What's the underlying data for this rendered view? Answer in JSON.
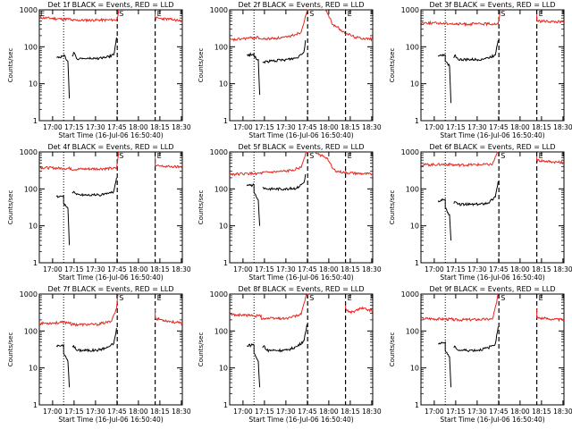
{
  "colors": {
    "events": "#000000",
    "lld": "#e8261e",
    "axis": "#000000"
  },
  "chart_data": {
    "type": "line",
    "yscale": "log",
    "ylim": [
      1,
      1000
    ],
    "xlim_minutes": [
      0,
      100
    ],
    "ylabel": "Counts/sec",
    "xlabel": "Start Time (16-Jul-06 16:50:40)",
    "yticks": [
      {
        "value": 1,
        "label": "1"
      },
      {
        "value": 10,
        "label": "10"
      },
      {
        "value": 100,
        "label": "100"
      },
      {
        "value": 1000,
        "label": "1000"
      }
    ],
    "xticks": [
      {
        "value": 9.3,
        "label": "17:00"
      },
      {
        "value": 24.3,
        "label": "17:15"
      },
      {
        "value": 39.3,
        "label": "17:30"
      },
      {
        "value": 54.3,
        "label": "17:45"
      },
      {
        "value": 69.3,
        "label": "18:00"
      },
      {
        "value": 84.3,
        "label": "18:15"
      },
      {
        "value": 99.3,
        "label": "18:30"
      }
    ],
    "markers": [
      {
        "label": "S",
        "x": 54.5,
        "style": "dashed"
      },
      {
        "label": "E",
        "x": 81.0,
        "style": "dashed"
      },
      {
        "label": "",
        "x": 17.0,
        "style": "dotted"
      }
    ],
    "panels": [
      {
        "title": "Det 1f BLACK = Events, RED = LLD",
        "corner_label": "E",
        "red": [
          [
            0,
            620
          ],
          [
            17,
            560
          ],
          [
            22,
            560
          ],
          [
            22,
            520
          ],
          [
            54,
            535
          ],
          [
            55,
            700
          ],
          [
            56,
            1200
          ]
        ],
        "red2": [
          [
            81,
            900
          ],
          [
            81,
            600
          ],
          [
            92,
            550
          ],
          [
            100,
            500
          ]
        ],
        "black": [
          [
            12,
            52
          ],
          [
            16,
            55
          ],
          [
            17,
            55
          ],
          [
            17,
            60
          ],
          [
            20,
            40
          ],
          [
            21,
            4
          ]
        ],
        "black2": [
          [
            23,
            55
          ],
          [
            24,
            70
          ],
          [
            26,
            48
          ],
          [
            40,
            48
          ],
          [
            47,
            52
          ],
          [
            52,
            60
          ],
          [
            53,
            100
          ],
          [
            54,
            180
          ]
        ]
      },
      {
        "title": "Det 2f BLACK = Events, RED = LLD",
        "corner_label": "",
        "red": [
          [
            0,
            150
          ],
          [
            12,
            170
          ],
          [
            20,
            180
          ],
          [
            22,
            160
          ],
          [
            40,
            180
          ],
          [
            50,
            250
          ],
          [
            53,
            700
          ],
          [
            55,
            1200
          ]
        ],
        "red2": [
          [
            66,
            1200
          ],
          [
            70,
            600
          ],
          [
            72,
            400
          ],
          [
            75,
            350
          ],
          [
            77,
            300
          ],
          [
            79,
            250
          ],
          [
            82,
            230
          ],
          [
            88,
            180
          ],
          [
            100,
            160
          ]
        ],
        "black": [
          [
            12,
            60
          ],
          [
            16,
            62
          ],
          [
            17,
            65
          ],
          [
            17,
            55
          ],
          [
            20,
            45
          ],
          [
            21,
            5
          ]
        ],
        "black2": [
          [
            23,
            38
          ],
          [
            26,
            40
          ],
          [
            38,
            44
          ],
          [
            47,
            50
          ],
          [
            52,
            75
          ],
          [
            53,
            150
          ]
        ]
      },
      {
        "title": "Det 3f BLACK = Events, RED = LLD",
        "corner_label": "",
        "red": [
          [
            0,
            450
          ],
          [
            17,
            430
          ],
          [
            22,
            430
          ],
          [
            22,
            410
          ],
          [
            54,
            420
          ],
          [
            55,
            700
          ],
          [
            56,
            1200
          ]
        ],
        "red2": [
          [
            81,
            750
          ],
          [
            81,
            500
          ],
          [
            92,
            480
          ],
          [
            100,
            460
          ]
        ],
        "black": [
          [
            12,
            55
          ],
          [
            16,
            58
          ],
          [
            17,
            60
          ],
          [
            17,
            40
          ],
          [
            20,
            30
          ],
          [
            21,
            3
          ]
        ],
        "black2": [
          [
            23,
            50
          ],
          [
            24,
            60
          ],
          [
            26,
            45
          ],
          [
            40,
            45
          ],
          [
            47,
            50
          ],
          [
            52,
            60
          ],
          [
            53,
            100
          ],
          [
            54,
            150
          ]
        ]
      },
      {
        "title": "Det 4f BLACK = Events, RED = LLD",
        "corner_label": "",
        "red": [
          [
            0,
            380
          ],
          [
            17,
            360
          ],
          [
            22,
            360
          ],
          [
            22,
            340
          ],
          [
            54,
            360
          ],
          [
            55,
            700
          ],
          [
            56,
            1200
          ]
        ],
        "red2": [
          [
            81,
            750
          ],
          [
            81,
            420
          ],
          [
            92,
            400
          ],
          [
            100,
            390
          ]
        ],
        "black": [
          [
            12,
            62
          ],
          [
            16,
            63
          ],
          [
            17,
            65
          ],
          [
            17,
            40
          ],
          [
            20,
            30
          ],
          [
            21,
            3
          ]
        ],
        "black2": [
          [
            23,
            80
          ],
          [
            24,
            85
          ],
          [
            26,
            70
          ],
          [
            40,
            68
          ],
          [
            47,
            72
          ],
          [
            52,
            85
          ],
          [
            53,
            130
          ],
          [
            54,
            200
          ]
        ]
      },
      {
        "title": "Det 5f BLACK = Events, RED = LLD",
        "corner_label": "",
        "red": [
          [
            0,
            250
          ],
          [
            17,
            260
          ],
          [
            22,
            260
          ],
          [
            22,
            270
          ],
          [
            40,
            300
          ],
          [
            50,
            380
          ],
          [
            53,
            900
          ],
          [
            55,
            1200
          ]
        ],
        "red2": [
          [
            60,
            900
          ],
          [
            64,
            800
          ],
          [
            68,
            700
          ],
          [
            70,
            500
          ],
          [
            72,
            350
          ],
          [
            75,
            300
          ],
          [
            80,
            280
          ],
          [
            90,
            260
          ],
          [
            100,
            250
          ]
        ],
        "black": [
          [
            12,
            120
          ],
          [
            16,
            125
          ],
          [
            17,
            130
          ],
          [
            17,
            80
          ],
          [
            20,
            50
          ],
          [
            21,
            10
          ]
        ],
        "black2": [
          [
            23,
            110
          ],
          [
            26,
            100
          ],
          [
            38,
            100
          ],
          [
            47,
            105
          ],
          [
            52,
            150
          ],
          [
            53,
            250
          ]
        ]
      },
      {
        "title": "Det 6f BLACK = Events, RED = LLD",
        "corner_label": "",
        "red": [
          [
            0,
            450
          ],
          [
            17,
            460
          ],
          [
            22,
            460
          ],
          [
            22,
            440
          ],
          [
            50,
            460
          ],
          [
            53,
            900
          ],
          [
            54,
            1200
          ]
        ],
        "red2": [
          [
            81,
            750
          ],
          [
            81,
            600
          ],
          [
            92,
            540
          ],
          [
            100,
            520
          ]
        ],
        "black": [
          [
            12,
            48
          ],
          [
            16,
            50
          ],
          [
            17,
            52
          ],
          [
            17,
            30
          ],
          [
            20,
            20
          ],
          [
            21,
            4
          ]
        ],
        "black2": [
          [
            23,
            40
          ],
          [
            24,
            45
          ],
          [
            26,
            38
          ],
          [
            40,
            38
          ],
          [
            47,
            42
          ],
          [
            52,
            60
          ],
          [
            53,
            100
          ],
          [
            54,
            160
          ]
        ]
      },
      {
        "title": "Det 7f BLACK = Events, RED = LLD",
        "corner_label": "",
        "red": [
          [
            0,
            160
          ],
          [
            17,
            170
          ],
          [
            22,
            170
          ],
          [
            22,
            150
          ],
          [
            40,
            150
          ],
          [
            50,
            180
          ],
          [
            54,
            400
          ],
          [
            55,
            1200
          ]
        ],
        "red2": [
          [
            81,
            400
          ],
          [
            81,
            220
          ],
          [
            92,
            180
          ],
          [
            100,
            160
          ]
        ],
        "black": [
          [
            12,
            40
          ],
          [
            16,
            42
          ],
          [
            17,
            42
          ],
          [
            17,
            25
          ],
          [
            20,
            15
          ],
          [
            21,
            3
          ]
        ],
        "black2": [
          [
            23,
            38
          ],
          [
            24,
            40
          ],
          [
            26,
            30
          ],
          [
            40,
            30
          ],
          [
            47,
            35
          ],
          [
            52,
            45
          ],
          [
            53,
            70
          ],
          [
            54,
            120
          ]
        ]
      },
      {
        "title": "Det 8f BLACK = Events, RED = LLD",
        "corner_label": "",
        "red": [
          [
            0,
            280
          ],
          [
            17,
            260
          ],
          [
            22,
            260
          ],
          [
            22,
            220
          ],
          [
            40,
            220
          ],
          [
            50,
            280
          ],
          [
            53,
            800
          ],
          [
            55,
            1200
          ]
        ],
        "red2": [
          [
            81,
            500
          ],
          [
            81,
            400
          ],
          [
            84,
            320
          ],
          [
            88,
            350
          ],
          [
            92,
            420
          ],
          [
            96,
            380
          ],
          [
            100,
            360
          ]
        ],
        "black": [
          [
            12,
            40
          ],
          [
            16,
            42
          ],
          [
            17,
            42
          ],
          [
            17,
            25
          ],
          [
            20,
            15
          ],
          [
            21,
            3
          ]
        ],
        "black2": [
          [
            23,
            35
          ],
          [
            24,
            40
          ],
          [
            26,
            30
          ],
          [
            40,
            30
          ],
          [
            47,
            38
          ],
          [
            52,
            55
          ],
          [
            53,
            90
          ],
          [
            54,
            150
          ]
        ]
      },
      {
        "title": "Det 9f BLACK = Events, RED = LLD",
        "corner_label": "",
        "red": [
          [
            0,
            220
          ],
          [
            17,
            210
          ],
          [
            22,
            210
          ],
          [
            22,
            200
          ],
          [
            50,
            210
          ],
          [
            53,
            600
          ],
          [
            54,
            1200
          ]
        ],
        "red2": [
          [
            81,
            400
          ],
          [
            81,
            230
          ],
          [
            92,
            210
          ],
          [
            100,
            200
          ]
        ],
        "black": [
          [
            12,
            45
          ],
          [
            16,
            48
          ],
          [
            17,
            50
          ],
          [
            17,
            30
          ],
          [
            20,
            20
          ],
          [
            21,
            3
          ]
        ],
        "black2": [
          [
            23,
            35
          ],
          [
            24,
            38
          ],
          [
            26,
            30
          ],
          [
            40,
            30
          ],
          [
            47,
            35
          ],
          [
            52,
            45
          ],
          [
            53,
            80
          ],
          [
            54,
            130
          ]
        ]
      }
    ]
  }
}
